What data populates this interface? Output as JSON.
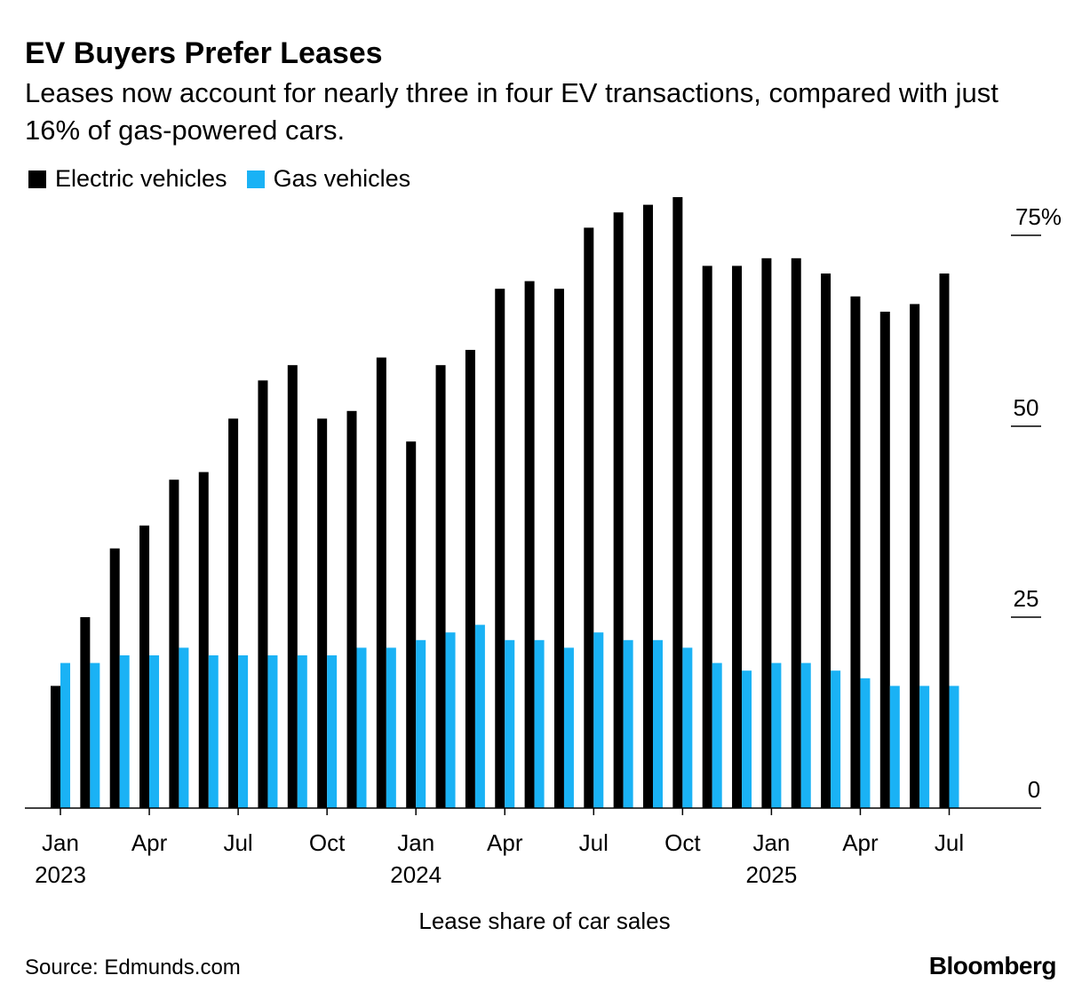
{
  "colors": {
    "electric": "#000000",
    "gas": "#1ab2f5"
  },
  "brand": "Bloomberg",
  "source": "Source: Edmunds.com",
  "chart_data": {
    "type": "bar",
    "title": "EV Buyers Prefer Leases",
    "subtitle": "Leases now account for nearly three in four EV transactions, compared with just 16% of gas-powered cars.",
    "xlabel": "Lease share of car sales",
    "ylabel": "",
    "ylim": [
      0,
      75
    ],
    "y_ticks": [
      {
        "value": 75,
        "label": "75%"
      },
      {
        "value": 50,
        "label": "50"
      },
      {
        "value": 25,
        "label": "25"
      },
      {
        "value": 0,
        "label": "0"
      }
    ],
    "x_ticks": [
      {
        "index": 0,
        "month": "Jan",
        "year": "2023"
      },
      {
        "index": 3,
        "month": "Apr",
        "year": ""
      },
      {
        "index": 6,
        "month": "Jul",
        "year": ""
      },
      {
        "index": 9,
        "month": "Oct",
        "year": ""
      },
      {
        "index": 12,
        "month": "Jan",
        "year": "2024"
      },
      {
        "index": 15,
        "month": "Apr",
        "year": ""
      },
      {
        "index": 18,
        "month": "Jul",
        "year": ""
      },
      {
        "index": 21,
        "month": "Oct",
        "year": ""
      },
      {
        "index": 24,
        "month": "Jan",
        "year": "2025"
      },
      {
        "index": 27,
        "month": "Apr",
        "year": ""
      },
      {
        "index": 30,
        "month": "Jul",
        "year": ""
      }
    ],
    "categories": [
      "Jan 2023",
      "Feb 2023",
      "Mar 2023",
      "Apr 2023",
      "May 2023",
      "Jun 2023",
      "Jul 2023",
      "Aug 2023",
      "Sep 2023",
      "Oct 2023",
      "Nov 2023",
      "Dec 2023",
      "Jan 2024",
      "Feb 2024",
      "Mar 2024",
      "Apr 2024",
      "May 2024",
      "Jun 2024",
      "Jul 2024",
      "Aug 2024",
      "Sep 2024",
      "Oct 2024",
      "Nov 2024",
      "Dec 2024",
      "Jan 2025",
      "Feb 2025",
      "Mar 2025",
      "Apr 2025",
      "May 2025",
      "Jun 2025",
      "Jul 2025"
    ],
    "series": [
      {
        "name": "Electric vehicles",
        "color": "#000000",
        "values": [
          16,
          25,
          34,
          37,
          43,
          44,
          51,
          56,
          58,
          51,
          52,
          59,
          48,
          58,
          60,
          68,
          69,
          68,
          76,
          78,
          79,
          80,
          71,
          71,
          72,
          72,
          70,
          67,
          65,
          66,
          70
        ]
      },
      {
        "name": "Gas vehicles",
        "color": "#1ab2f5",
        "values": [
          19,
          19,
          20,
          20,
          21,
          20,
          20,
          20,
          20,
          20,
          21,
          21,
          22,
          23,
          24,
          22,
          22,
          21,
          23,
          22,
          22,
          21,
          19,
          18,
          19,
          19,
          18,
          17,
          16,
          16,
          16
        ]
      }
    ],
    "grid": false,
    "legend_position": "top-left"
  }
}
